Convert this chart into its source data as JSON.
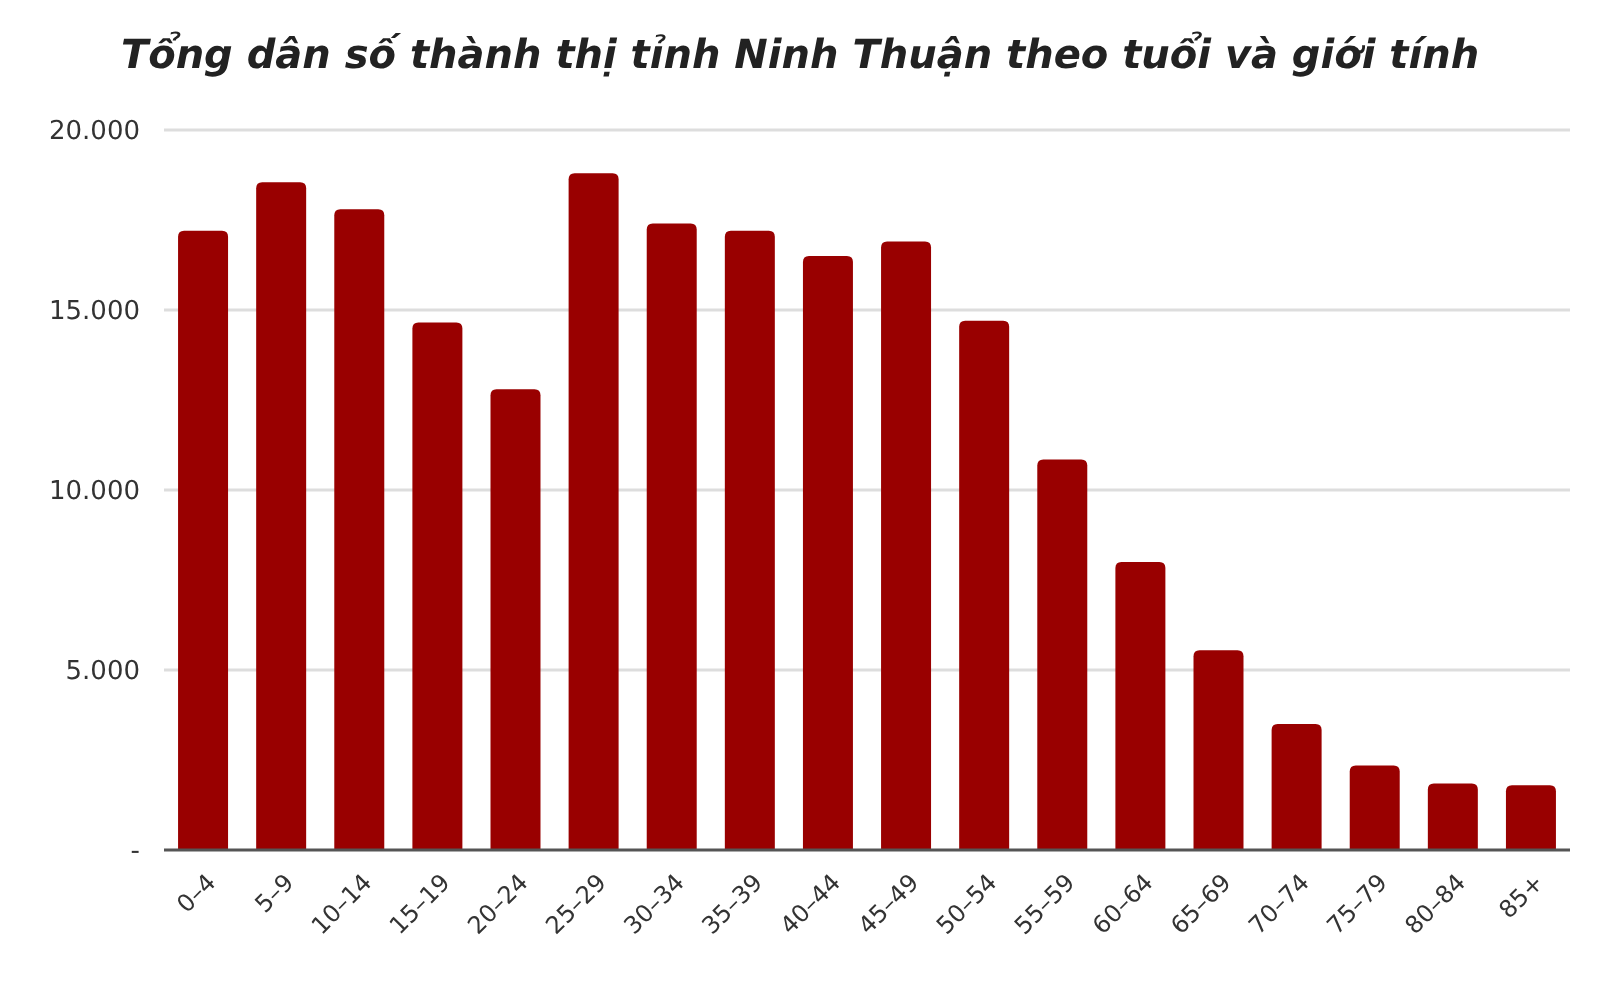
{
  "chart_data": {
    "type": "bar",
    "title": "Tổng dân số thành thị tỉnh Ninh Thuận theo tuổi và giới tính",
    "categories": [
      "0–4",
      "5–9",
      "10–14",
      "15–19",
      "20–24",
      "25–29",
      "30–34",
      "35–39",
      "40–44",
      "45–49",
      "50–54",
      "55–59",
      "60–64",
      "65–69",
      "70–74",
      "75–79",
      "80–84",
      "85+"
    ],
    "values": [
      17200,
      18550,
      17800,
      14650,
      12800,
      18800,
      17400,
      17200,
      16500,
      16900,
      14700,
      10850,
      8000,
      5550,
      3500,
      2350,
      1850,
      1800
    ],
    "color": "#990000",
    "ylim": [
      0,
      20000
    ],
    "yticks": [
      {
        "value": 0,
        "label": "-"
      },
      {
        "value": 5000,
        "label": "5.000"
      },
      {
        "value": 10000,
        "label": "10.000"
      },
      {
        "value": 15000,
        "label": "15.000"
      },
      {
        "value": 20000,
        "label": "20.000"
      }
    ],
    "grid": "y"
  }
}
